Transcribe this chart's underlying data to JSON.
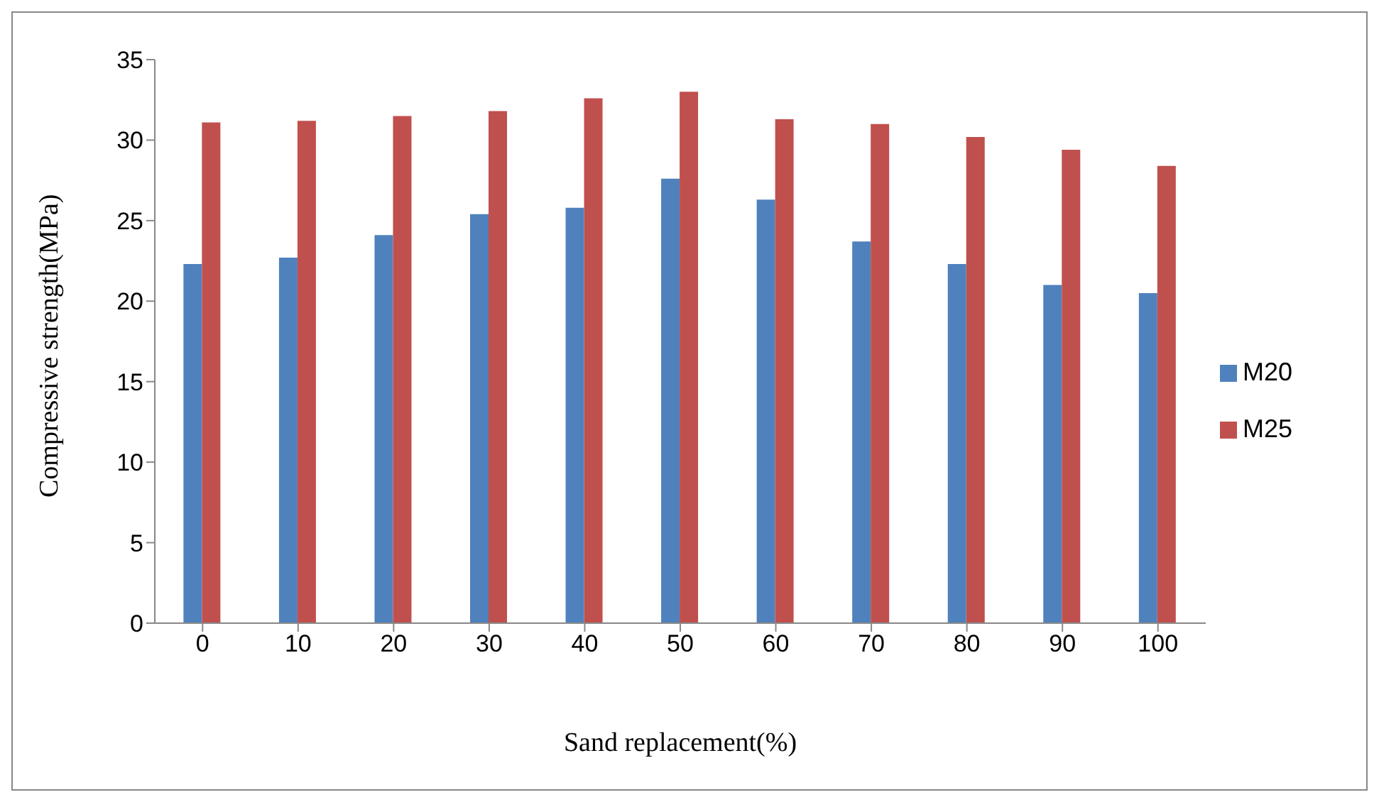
{
  "chart_data": {
    "type": "bar",
    "xlabel": "Sand replacement(%)",
    "ylabel": "Compressive strength(MPa)",
    "categories": [
      "0",
      "10",
      "20",
      "30",
      "40",
      "50",
      "60",
      "70",
      "80",
      "90",
      "100"
    ],
    "series": [
      {
        "name": "M20",
        "color": "#4f81bd",
        "values": [
          22.3,
          22.7,
          24.1,
          25.4,
          25.8,
          27.6,
          26.3,
          23.7,
          22.3,
          21.0,
          20.5
        ]
      },
      {
        "name": "M25",
        "color": "#c0504d",
        "values": [
          31.1,
          31.2,
          31.5,
          31.8,
          32.6,
          33.0,
          31.3,
          31.0,
          30.2,
          29.4,
          28.4
        ]
      }
    ],
    "ylim": [
      0,
      35
    ],
    "yticks": [
      0,
      5,
      10,
      15,
      20,
      25,
      30,
      35
    ],
    "grid": false,
    "legend": "right"
  }
}
